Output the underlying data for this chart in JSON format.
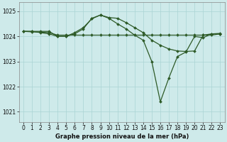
{
  "title": "Graphe pression niveau de la mer (hPa)",
  "bg_color": "#ceeaea",
  "grid_color": "#aad4d4",
  "line_color": "#2d5a27",
  "xlim": [
    -0.5,
    23.5
  ],
  "ylim": [
    1020.6,
    1025.35
  ],
  "yticks": [
    1021,
    1022,
    1023,
    1024,
    1025
  ],
  "xticks": [
    0,
    1,
    2,
    3,
    4,
    5,
    6,
    7,
    8,
    9,
    10,
    11,
    12,
    13,
    14,
    15,
    16,
    17,
    18,
    19,
    20,
    21,
    22,
    23
  ],
  "series1_x": [
    0,
    1,
    2,
    3,
    4,
    5,
    6,
    7,
    8,
    9,
    10,
    11,
    12,
    13,
    14,
    15,
    16,
    17,
    18,
    19,
    20,
    21,
    22,
    23
  ],
  "series1_y": [
    1024.2,
    1024.2,
    1024.2,
    1024.2,
    1024.0,
    1024.0,
    1024.1,
    1024.3,
    1024.72,
    1024.85,
    1024.75,
    1024.72,
    1024.55,
    1024.35,
    1024.15,
    1023.85,
    1023.65,
    1023.5,
    1023.42,
    1023.4,
    1023.42,
    1024.05,
    1024.1,
    1024.12
  ],
  "series2_x": [
    0,
    1,
    2,
    3,
    4,
    5,
    6,
    7,
    8,
    9,
    10,
    11,
    12,
    13,
    14,
    15,
    16,
    17,
    18,
    19,
    20,
    21,
    22,
    23
  ],
  "series2_y": [
    1024.2,
    1024.2,
    1024.15,
    1024.1,
    1024.0,
    1024.0,
    1024.15,
    1024.35,
    1024.7,
    1024.85,
    1024.72,
    1024.5,
    1024.3,
    1024.05,
    1023.85,
    1023.0,
    1021.4,
    1022.35,
    1023.2,
    1023.38,
    1024.0,
    1023.95,
    1024.1,
    1024.1
  ],
  "series3_x": [
    0,
    1,
    2,
    3,
    4,
    5,
    6,
    7,
    8,
    9,
    10,
    11,
    12,
    13,
    14,
    15,
    16,
    17,
    18,
    19,
    20,
    21,
    22,
    23
  ],
  "series3_y": [
    1024.2,
    1024.18,
    1024.17,
    1024.15,
    1024.05,
    1024.05,
    1024.05,
    1024.05,
    1024.05,
    1024.05,
    1024.05,
    1024.05,
    1024.05,
    1024.05,
    1024.05,
    1024.05,
    1024.05,
    1024.05,
    1024.05,
    1024.05,
    1024.05,
    1024.05,
    1024.05,
    1024.1
  ],
  "tick_fontsize": 5.5,
  "label_fontsize": 6.0,
  "marker_size": 2.0,
  "line_width": 0.9
}
